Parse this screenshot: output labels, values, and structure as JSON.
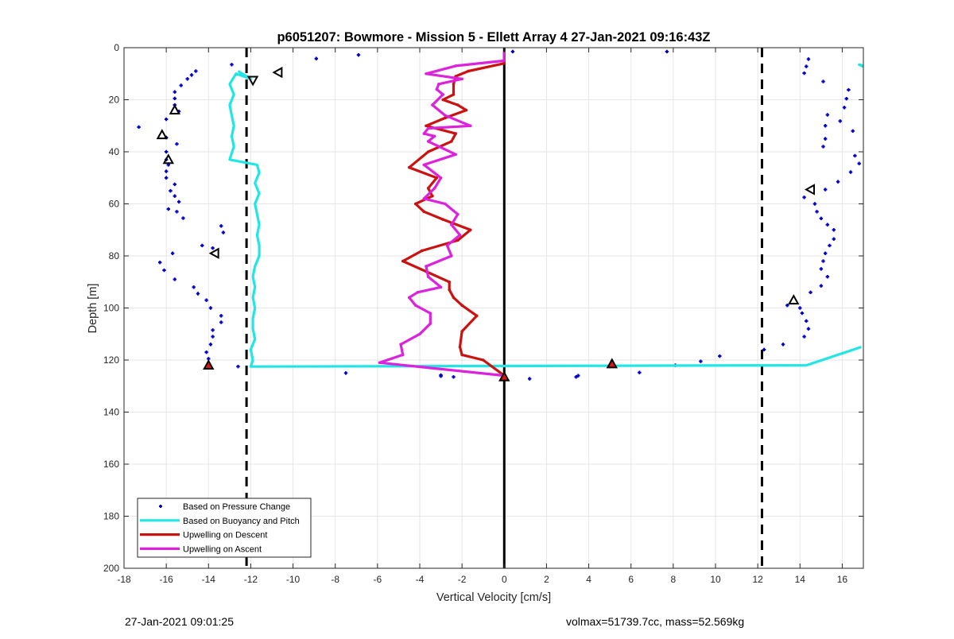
{
  "footer": {
    "left": "27-Jan-2021 09:01:25",
    "right": "volmax=51739.7cc, mass=52.569kg"
  },
  "chart_data": {
    "type": "line",
    "title": "p6051207: Bowmore - Mission 5 - Ellett Array 4 27-Jan-2021 09:16:43Z",
    "xlabel": "Vertical Velocity [cm/s]",
    "ylabel": "Depth [m]",
    "xlim": [
      -18,
      17
    ],
    "ylim": [
      0,
      200
    ],
    "y_reversed": true,
    "grid": true,
    "legend_position": "bottom-left",
    "xticks": [
      -18,
      -16,
      -14,
      -12,
      -10,
      -8,
      -6,
      -4,
      -2,
      0,
      2,
      4,
      6,
      8,
      10,
      12,
      14,
      16
    ],
    "yticks": [
      0,
      20,
      40,
      60,
      80,
      100,
      120,
      140,
      160,
      180,
      200
    ],
    "reference_lines": [
      {
        "x": 0,
        "style": "solid",
        "color": "#000000"
      },
      {
        "x": -12.2,
        "style": "dashed",
        "color": "#000000"
      },
      {
        "x": 12.2,
        "style": "dashed",
        "color": "#000000"
      }
    ],
    "series": [
      {
        "name": "Based on Pressure Change",
        "kind": "scatter",
        "color": "#0000cc",
        "points": [
          [
            -12.9,
            6.5
          ],
          [
            -8.9,
            4.2
          ],
          [
            -6.9,
            2.8
          ],
          [
            0.4,
            1.5
          ],
          [
            7.7,
            1.5
          ],
          [
            14.4,
            4.4
          ],
          [
            14.3,
            7.2
          ],
          [
            14.2,
            9.8
          ],
          [
            15.1,
            13
          ],
          [
            16.3,
            16.2
          ],
          [
            16.2,
            19.6
          ],
          [
            16.1,
            23
          ],
          [
            15.3,
            25.8
          ],
          [
            15.9,
            28.2
          ],
          [
            15.2,
            30
          ],
          [
            16.5,
            32
          ],
          [
            15.2,
            35
          ],
          [
            15.1,
            38
          ],
          [
            16.6,
            41.5
          ],
          [
            16.8,
            44.5
          ],
          [
            16.4,
            47.8
          ],
          [
            15.8,
            51.5
          ],
          [
            15.2,
            54.5
          ],
          [
            14.2,
            57.5
          ],
          [
            14.7,
            60
          ],
          [
            14.8,
            63
          ],
          [
            15.0,
            65.6
          ],
          [
            15.3,
            68
          ],
          [
            15.6,
            70
          ],
          [
            15.6,
            73.5
          ],
          [
            15.4,
            76
          ],
          [
            15.2,
            79
          ],
          [
            15.1,
            82
          ],
          [
            15.0,
            85
          ],
          [
            15.3,
            88
          ],
          [
            15.0,
            91.5
          ],
          [
            14.5,
            94
          ],
          [
            13.4,
            99
          ],
          [
            14.0,
            100
          ],
          [
            14.1,
            102
          ],
          [
            14.3,
            105
          ],
          [
            14.4,
            108
          ],
          [
            14.2,
            111
          ],
          [
            13.2,
            114
          ],
          [
            12.3,
            116
          ],
          [
            10.2,
            118.5
          ],
          [
            9.3,
            120.5
          ],
          [
            8.1,
            122
          ],
          [
            6.4,
            124.8
          ],
          [
            3.5,
            126
          ],
          [
            3.4,
            126.5
          ],
          [
            1.2,
            127.2
          ],
          [
            -2.4,
            126.5
          ],
          [
            -3.0,
            125.8
          ],
          [
            -3.0,
            126.2
          ],
          [
            -7.5,
            125
          ],
          [
            -12.6,
            122.5
          ],
          [
            -14.0,
            119.5
          ],
          [
            -14.1,
            117
          ],
          [
            -13.9,
            114
          ],
          [
            -13.8,
            111
          ],
          [
            -13.8,
            108.5
          ],
          [
            -13.4,
            105.5
          ],
          [
            -13.4,
            103
          ],
          [
            -13.9,
            100
          ],
          [
            -14.1,
            97
          ],
          [
            -14.5,
            94.5
          ],
          [
            -14.7,
            92
          ],
          [
            -15.6,
            89
          ],
          [
            -16.1,
            85.5
          ],
          [
            -16.3,
            82.5
          ],
          [
            -13.8,
            77
          ],
          [
            -14.3,
            76
          ],
          [
            -15.7,
            79
          ],
          [
            -13.3,
            71
          ],
          [
            -13.4,
            68.5
          ],
          [
            -15.2,
            65.5
          ],
          [
            -15.5,
            63
          ],
          [
            -15.9,
            62
          ],
          [
            -15.4,
            59.2
          ],
          [
            -15.6,
            57
          ],
          [
            -15.8,
            55
          ],
          [
            -15.6,
            52.5
          ],
          [
            -16.0,
            50
          ],
          [
            -16.0,
            47.5
          ],
          [
            -15.9,
            45
          ],
          [
            -16.0,
            43
          ],
          [
            -16.0,
            40
          ],
          [
            -15.5,
            37
          ],
          [
            -16.0,
            34.5
          ],
          [
            -17.3,
            30.5
          ],
          [
            -16.0,
            27.5
          ],
          [
            -15.4,
            24.5
          ],
          [
            -15.6,
            22
          ],
          [
            -15.6,
            19.5
          ],
          [
            -15.6,
            17
          ],
          [
            -15.3,
            14.5
          ],
          [
            -15.0,
            12
          ],
          [
            -14.8,
            10.5
          ],
          [
            -14.6,
            9
          ]
        ]
      },
      {
        "name": "Based on Buoyancy and Pitch",
        "kind": "line",
        "color": "#22e5e5",
        "points": [
          [
            17.0,
            7.0
          ],
          [
            16.8,
            6.5
          ],
          [
            17.0,
            7.3
          ]
        ],
        "main_points": [
          [
            -12.6,
            9
          ],
          [
            -12.0,
            12
          ],
          [
            -12.7,
            10
          ],
          [
            -13.0,
            14
          ],
          [
            -12.8,
            18
          ],
          [
            -13.0,
            22
          ],
          [
            -12.9,
            26
          ],
          [
            -12.8,
            30
          ],
          [
            -12.9,
            34
          ],
          [
            -12.8,
            38
          ],
          [
            -13.0,
            43
          ],
          [
            -11.7,
            45
          ],
          [
            -11.6,
            48
          ],
          [
            -11.8,
            52
          ],
          [
            -11.6,
            56
          ],
          [
            -11.8,
            60
          ],
          [
            -11.7,
            64
          ],
          [
            -11.6,
            68
          ],
          [
            -11.7,
            72
          ],
          [
            -11.6,
            76
          ],
          [
            -11.6,
            80
          ],
          [
            -11.8,
            84
          ],
          [
            -11.9,
            88
          ],
          [
            -11.8,
            92
          ],
          [
            -11.9,
            96
          ],
          [
            -11.8,
            100
          ],
          [
            -11.9,
            104
          ],
          [
            -11.9,
            108
          ],
          [
            -11.8,
            112
          ],
          [
            -12.0,
            116
          ],
          [
            -11.9,
            120
          ],
          [
            -12.0,
            122.5
          ],
          [
            14.3,
            122
          ],
          [
            16.9,
            115
          ]
        ]
      },
      {
        "name": "Upwelling on Descent",
        "kind": "line",
        "color": "#cc1111",
        "points": [
          [
            0,
            2
          ],
          [
            0,
            6
          ],
          [
            -1.7,
            9
          ],
          [
            -2.3,
            11
          ],
          [
            -2.4,
            14
          ],
          [
            -2.4,
            18
          ],
          [
            -2.9,
            20
          ],
          [
            -2.2,
            22
          ],
          [
            -1.8,
            24
          ],
          [
            -2.8,
            27
          ],
          [
            -3.7,
            30
          ],
          [
            -2.3,
            33
          ],
          [
            -2.5,
            36
          ],
          [
            -3.6,
            40
          ],
          [
            -4.5,
            46
          ],
          [
            -3.2,
            50
          ],
          [
            -3.6,
            54
          ],
          [
            -3.4,
            57
          ],
          [
            -4.2,
            60
          ],
          [
            -3.8,
            63
          ],
          [
            -2.9,
            66
          ],
          [
            -1.6,
            70
          ],
          [
            -2.2,
            74
          ],
          [
            -3.9,
            78
          ],
          [
            -4.8,
            82
          ],
          [
            -3.7,
            86
          ],
          [
            -2.6,
            90
          ],
          [
            -2.6,
            93
          ],
          [
            -2.4,
            96
          ],
          [
            -2.0,
            99
          ],
          [
            -1.3,
            103
          ],
          [
            -2.0,
            109
          ],
          [
            -2.1,
            115
          ],
          [
            -2.0,
            118
          ],
          [
            -1.0,
            120
          ],
          [
            0,
            126
          ]
        ]
      },
      {
        "name": "Upwelling on Ascent",
        "kind": "line",
        "color": "#dd22dd",
        "points": [
          [
            0,
            2
          ],
          [
            0,
            5
          ],
          [
            -2.3,
            7
          ],
          [
            -3.7,
            10
          ],
          [
            -2.0,
            12
          ],
          [
            -3.1,
            14
          ],
          [
            -3.2,
            16
          ],
          [
            -2.9,
            18
          ],
          [
            -3.4,
            22
          ],
          [
            -2.8,
            26
          ],
          [
            -1.6,
            30
          ],
          [
            -3.6,
            31
          ],
          [
            -3.8,
            33
          ],
          [
            -3.3,
            34
          ],
          [
            -3.6,
            36
          ],
          [
            -2.3,
            41
          ],
          [
            -3.8,
            45
          ],
          [
            -3.0,
            50
          ],
          [
            -3.3,
            54
          ],
          [
            -3.8,
            58
          ],
          [
            -2.8,
            60
          ],
          [
            -2.2,
            64
          ],
          [
            -2.5,
            68
          ],
          [
            -2.1,
            72
          ],
          [
            -2.7,
            76
          ],
          [
            -2.5,
            80
          ],
          [
            -3.7,
            84
          ],
          [
            -3.6,
            88
          ],
          [
            -3.0,
            92
          ],
          [
            -4.1,
            94
          ],
          [
            -4.5,
            96
          ],
          [
            -4.2,
            99
          ],
          [
            -3.5,
            102
          ],
          [
            -3.5,
            106
          ],
          [
            -4.0,
            110
          ],
          [
            -4.9,
            114
          ],
          [
            -4.8,
            118
          ],
          [
            -5.9,
            121
          ],
          [
            0,
            126
          ]
        ]
      }
    ],
    "markers": [
      {
        "shape": "tri-left",
        "x": -10.7,
        "y": 9.5
      },
      {
        "shape": "tri-down",
        "x": -11.9,
        "y": 12.5
      },
      {
        "shape": "tri-up",
        "x": -15.6,
        "y": 24
      },
      {
        "shape": "tri-up",
        "x": -16.2,
        "y": 33.5
      },
      {
        "shape": "tri-up",
        "x": -15.9,
        "y": 43
      },
      {
        "shape": "tri-left",
        "x": -13.7,
        "y": 79
      },
      {
        "shape": "tri-left",
        "x": 14.5,
        "y": 54.5
      },
      {
        "shape": "tri-up",
        "x": 13.7,
        "y": 97
      },
      {
        "shape": "tri-up-filled",
        "x": -14.0,
        "y": 122
      },
      {
        "shape": "tri-up-filled",
        "x": 5.1,
        "y": 121.5
      },
      {
        "shape": "tri-up-filled",
        "x": 0,
        "y": 126.5
      }
    ]
  }
}
